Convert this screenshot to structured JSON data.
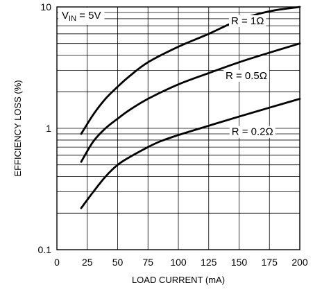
{
  "chart_data": {
    "type": "line",
    "xlabel": "LOAD CURRENT (mA)",
    "ylabel": "EFFICIENCY LOSS (%)",
    "xlim": [
      0,
      200
    ],
    "ylim": [
      0.1,
      10
    ],
    "y_scale": "log",
    "grid": true,
    "x_ticks": [
      "0",
      "25",
      "50",
      "75",
      "100",
      "125",
      "150",
      "175",
      "200"
    ],
    "y_ticks": [
      "0.1",
      "1",
      "10"
    ],
    "annotation": {
      "prefix": "V",
      "subscript": "IN",
      "suffix": " = 5V"
    },
    "series": [
      {
        "label": "R = 1Ω",
        "x": [
          20,
          30,
          40,
          50,
          60,
          75,
          100,
          125,
          150,
          175,
          200
        ],
        "y": [
          0.9,
          1.3,
          1.75,
          2.2,
          2.7,
          3.5,
          4.7,
          6.0,
          7.8,
          9.2,
          10.0
        ]
      },
      {
        "label": "R = 0.5Ω",
        "x": [
          20,
          30,
          40,
          50,
          60,
          75,
          100,
          125,
          150,
          175,
          200
        ],
        "y": [
          0.53,
          0.78,
          1.0,
          1.2,
          1.42,
          1.75,
          2.3,
          2.85,
          3.5,
          4.2,
          5.0
        ]
      },
      {
        "label": "R = 0.2Ω",
        "x": [
          20,
          30,
          40,
          50,
          60,
          75,
          85,
          100,
          125,
          150,
          175,
          200
        ],
        "y": [
          0.22,
          0.3,
          0.4,
          0.5,
          0.58,
          0.7,
          0.78,
          0.88,
          1.05,
          1.25,
          1.48,
          1.75
        ]
      }
    ]
  }
}
